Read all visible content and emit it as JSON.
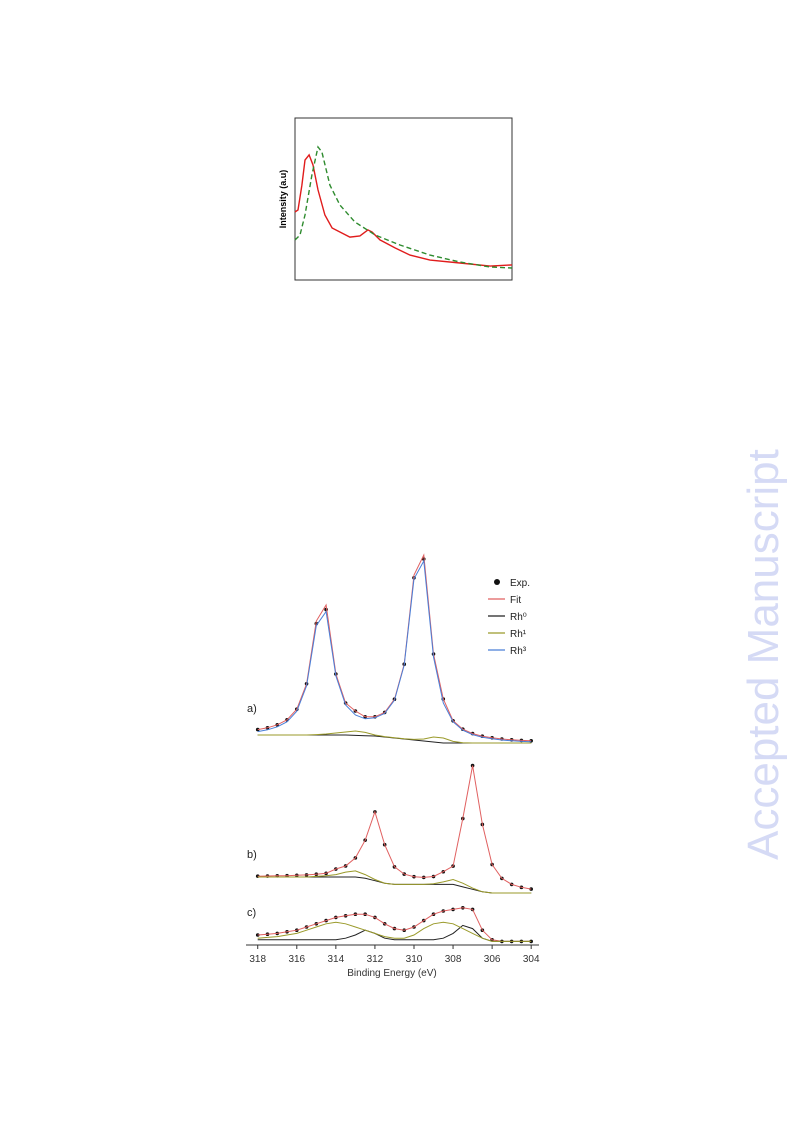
{
  "watermark": "Accepted Manuscript",
  "chart_data": [
    {
      "type": "line",
      "ylabel": "Intensity (a.u)",
      "xlim": [
        0,
        100
      ],
      "ylim": [
        0,
        100
      ],
      "series": [
        {
          "color": "#e01c1c",
          "dash": false,
          "x": [
            0,
            1.4,
            3.2,
            4.6,
            6.5,
            8.3,
            10.6,
            13.8,
            17.1,
            20.7,
            25.3,
            29.9,
            33.6,
            35.5,
            39.2,
            46.1,
            53,
            62.2,
            76,
            89.9,
            100
          ],
          "values": [
            42,
            43.2,
            58.6,
            74.1,
            77.2,
            71,
            55.6,
            40.1,
            32.1,
            29.6,
            26.5,
            27.2,
            30.9,
            29.6,
            24.7,
            19.8,
            15.4,
            12.3,
            10.5,
            8.6,
            9.3
          ]
        },
        {
          "color": "#2e8b2e",
          "dash": true,
          "x": [
            0,
            2.3,
            4.6,
            7.8,
            10.6,
            12.4,
            16.1,
            20.7,
            27.6,
            36.9,
            48.4,
            62.2,
            76,
            89.9,
            100
          ],
          "values": [
            24.7,
            27.8,
            40.1,
            64.8,
            82.1,
            79,
            58.6,
            46.3,
            35.8,
            27.8,
            21.6,
            15.4,
            11.1,
            8,
            7.4
          ]
        }
      ]
    },
    {
      "type": "line",
      "xlabel": "Binding Energy (eV)",
      "xlim": [
        318.6,
        303.6
      ],
      "xticks": [
        318,
        316,
        314,
        312,
        310,
        308,
        306,
        304
      ],
      "legend": "upper right",
      "series": [
        {
          "name": "Exp.",
          "color": "#111111",
          "marker": "dot"
        },
        {
          "name": "Fit",
          "color": "#e06060",
          "marker": "line"
        },
        {
          "name": "Rh⁰",
          "color": "#222222",
          "marker": "line"
        },
        {
          "name": "Rh¹",
          "color": "#9a9a2a",
          "marker": "line"
        },
        {
          "name": "Rh³",
          "color": "#4a7fd8",
          "marker": "line"
        }
      ],
      "panels": [
        {
          "label": "a)",
          "ylim": [
            0,
            100
          ],
          "x": [
            318,
            317.5,
            317,
            316.5,
            316,
            315.5,
            315,
            314.5,
            314,
            313.5,
            313,
            312.5,
            312,
            311.5,
            311,
            310.5,
            310,
            309.5,
            309,
            308.5,
            308,
            307.5,
            307,
            306.5,
            306,
            305.5,
            305,
            304.5,
            304
          ],
          "values": [
            [
              7.7,
              8.6,
              10.1,
              12.6,
              17.9,
              30.6,
              60.7,
              67.7,
              35.5,
              21,
              17,
              14.1,
              14.1,
              16.3,
              22.9,
              40.4,
              83.6,
              93,
              45.5,
              23,
              12.1,
              7.9,
              5.7,
              4.4,
              3.6,
              3,
              2.6,
              2.3,
              2.1
            ],
            [
              7.7,
              8.6,
              10.1,
              12.6,
              17.9,
              30.6,
              62,
              70,
              35.5,
              21,
              17,
              14.1,
              14.1,
              16.3,
              22.9,
              40.4,
              85,
              95,
              45.5,
              23,
              12.1,
              7.9,
              5.7,
              4.4,
              3.6,
              3,
              2.6,
              2.3,
              2.1
            ],
            [
              5,
              5,
              5,
              5,
              5,
              5,
              5,
              5,
              5,
              5,
              4.8,
              4.6,
              4.5,
              4,
              3.5,
              3,
              2.5,
              2,
              1.5,
              1,
              1,
              1,
              1,
              1,
              1,
              1,
              1,
              1,
              1
            ],
            [
              5,
              5,
              5,
              5,
              5,
              5,
              5.2,
              5.5,
              6,
              6.5,
              7,
              6.3,
              5,
              4.2,
              3.6,
              3.1,
              2.8,
              3,
              4,
              3.5,
              1.8,
              1.1,
              1,
              1,
              1,
              1,
              1,
              1,
              1
            ],
            [
              6.7,
              7.6,
              9.1,
              11.6,
              16.9,
              29.6,
              59.7,
              66.7,
              34.5,
              20,
              15,
              13.1,
              13.6,
              15.8,
              22.4,
              39.9,
              83.1,
              92,
              44,
              21,
              11.6,
              7.4,
              5.2,
              3.9,
              3.1,
              2.5,
              2.1,
              1.8,
              1.6
            ]
          ]
        },
        {
          "label": "b)",
          "ylim": [
            0,
            105
          ],
          "x": [
            318,
            317.5,
            317,
            316.5,
            316,
            315.5,
            315,
            314.5,
            314,
            313.5,
            313,
            312.5,
            312,
            311.5,
            311,
            310.5,
            310,
            309.5,
            309,
            308.5,
            308,
            307.5,
            307,
            306.5,
            306,
            305.5,
            305,
            304.5,
            304
          ],
          "values": [
            [
              13.7,
              13.8,
              14,
              14.1,
              14.4,
              14.7,
              15.3,
              16,
              19.5,
              22,
              28.6,
              43,
              66,
              39.3,
              21.3,
              15.4,
              13.3,
              12.7,
              13.4,
              17.3,
              21.9,
              60.6,
              103.7,
              55.8,
              23.2,
              11.9,
              7,
              4.6,
              3.2
            ],
            [
              13.7,
              13.8,
              14,
              14.1,
              14.4,
              14.7,
              15.3,
              16,
              19.5,
              22,
              28.6,
              43,
              66,
              39.3,
              21.3,
              15.4,
              13.3,
              12.7,
              13.4,
              17.3,
              21.9,
              60.6,
              103.7,
              55.8,
              23.2,
              11.9,
              7,
              4.6,
              3.2
            ],
            [
              13,
              13,
              13,
              13,
              13,
              13,
              13,
              13,
              13,
              13,
              13,
              12,
              10,
              8,
              7,
              7,
              7,
              7,
              7,
              7,
              7,
              5,
              3,
              1,
              0,
              0,
              0,
              0,
              0
            ],
            [
              13,
              13,
              13,
              13,
              13,
              13,
              13.5,
              14,
              15,
              17,
              18,
              15,
              11,
              8,
              7,
              7,
              7,
              7,
              7.5,
              9,
              11,
              8,
              4,
              1,
              0,
              0,
              0,
              0,
              0
            ]
          ]
        },
        {
          "label": "c)",
          "ylim": [
            0,
            30
          ],
          "x": [
            318,
            317.5,
            317,
            316.5,
            316,
            315.5,
            315,
            314.5,
            314,
            313.5,
            313,
            312.5,
            312,
            311.5,
            311,
            310.5,
            310,
            309.5,
            309,
            308.5,
            308,
            307.5,
            307,
            306.5,
            306,
            305.5,
            305,
            304.5,
            304
          ],
          "values": [
            [
              5,
              5.5,
              6,
              7,
              8,
              10,
              12,
              14,
              16,
              17,
              18,
              18,
              16,
              12,
              9,
              8,
              10,
              14,
              18,
              20,
              21,
              22,
              21,
              8,
              2,
              1,
              1,
              1,
              1
            ],
            [
              5,
              5.5,
              6,
              7,
              8,
              10,
              12,
              14,
              16,
              17,
              18,
              18,
              16,
              12,
              9,
              8,
              10,
              14,
              18,
              20,
              21,
              22,
              21,
              8,
              2,
              1,
              1,
              1,
              1
            ],
            [
              2,
              2,
              2,
              2,
              2,
              2,
              2,
              2,
              2,
              3,
              5,
              8,
              6,
              3,
              2,
              2,
              2,
              2,
              2,
              3,
              6,
              11,
              9,
              3,
              1,
              1,
              1,
              1,
              1
            ],
            [
              3,
              3.5,
              4,
              5,
              6,
              8,
              10,
              12,
              13,
              12,
              10,
              8,
              6,
              4,
              3,
              3,
              5,
              9,
              12,
              13,
              12,
              9,
              6,
              3,
              1,
              1,
              1,
              1,
              1
            ]
          ]
        }
      ]
    }
  ]
}
